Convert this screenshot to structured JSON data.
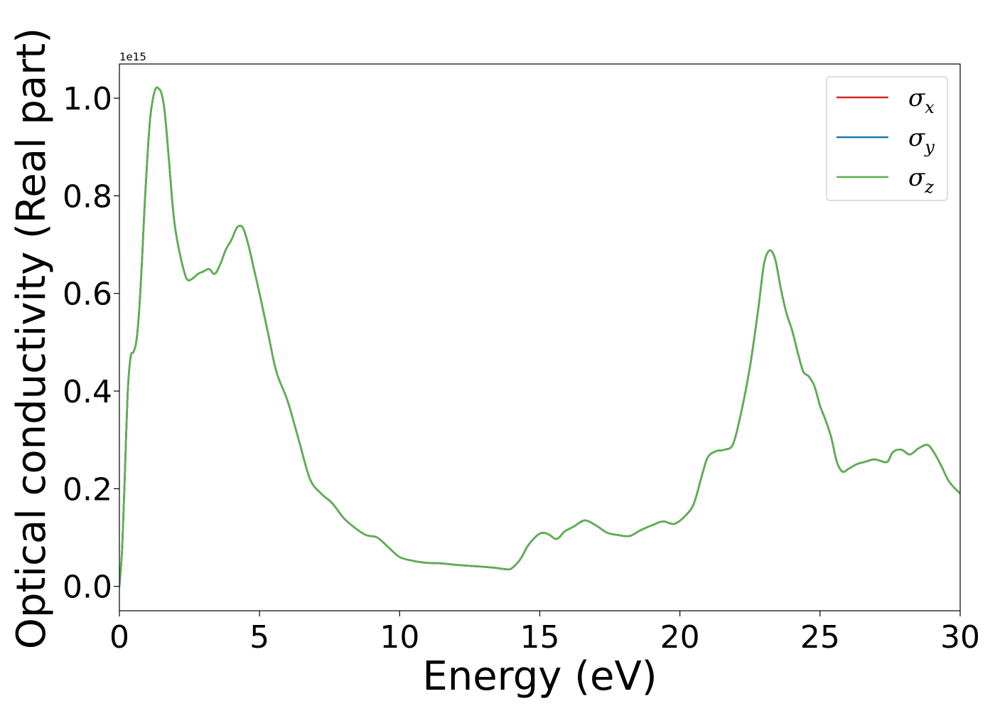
{
  "chart_data": {
    "type": "line",
    "xlabel": "Energy (eV)",
    "ylabel": "Optical conductivity (Real part)",
    "y_offset_text": "1e15",
    "xlim": [
      0,
      30
    ],
    "ylim": [
      -0.05,
      1.07
    ],
    "xticks": [
      0,
      5,
      10,
      15,
      20,
      25,
      30
    ],
    "xtick_labels": [
      "0",
      "5",
      "10",
      "15",
      "20",
      "25",
      "30"
    ],
    "yticks": [
      0.0,
      0.2,
      0.4,
      0.6,
      0.8,
      1.0
    ],
    "ytick_labels": [
      "0.0",
      "0.2",
      "0.4",
      "0.6",
      "0.8",
      "1.0"
    ],
    "grid": false,
    "legend_position": "top-right",
    "x": [
      0.0,
      0.1,
      0.2,
      0.3,
      0.4,
      0.5,
      0.6,
      0.7,
      0.8,
      0.9,
      1.0,
      1.1,
      1.2,
      1.3,
      1.4,
      1.5,
      1.6,
      1.7,
      1.8,
      1.9,
      2.0,
      2.2,
      2.4,
      2.6,
      2.8,
      3.0,
      3.2,
      3.4,
      3.6,
      3.8,
      4.0,
      4.2,
      4.4,
      4.6,
      4.8,
      5.0,
      5.3,
      5.6,
      6.0,
      6.4,
      6.8,
      7.2,
      7.6,
      8.0,
      8.4,
      8.8,
      9.2,
      9.6,
      10.0,
      10.5,
      11.0,
      11.5,
      12.0,
      12.5,
      13.0,
      13.4,
      13.8,
      14.0,
      14.3,
      14.6,
      15.0,
      15.3,
      15.6,
      15.9,
      16.2,
      16.6,
      17.0,
      17.4,
      17.8,
      18.2,
      18.6,
      19.0,
      19.4,
      19.8,
      20.2,
      20.5,
      20.8,
      21.0,
      21.3,
      21.6,
      21.9,
      22.2,
      22.5,
      22.8,
      23.0,
      23.2,
      23.4,
      23.6,
      23.8,
      24.0,
      24.2,
      24.4,
      24.6,
      24.8,
      25.0,
      25.2,
      25.4,
      25.6,
      25.8,
      26.0,
      26.3,
      26.6,
      26.9,
      27.1,
      27.4,
      27.6,
      27.9,
      28.2,
      28.5,
      28.8,
      29.0,
      29.3,
      29.6,
      30.0
    ],
    "series": [
      {
        "name": "σx",
        "color": "#d62728",
        "y": [
          0.0,
          0.08,
          0.24,
          0.4,
          0.47,
          0.48,
          0.5,
          0.56,
          0.66,
          0.78,
          0.88,
          0.96,
          1.0,
          1.02,
          1.02,
          1.01,
          0.98,
          0.92,
          0.85,
          0.78,
          0.73,
          0.67,
          0.63,
          0.63,
          0.64,
          0.645,
          0.65,
          0.64,
          0.66,
          0.69,
          0.71,
          0.735,
          0.735,
          0.7,
          0.65,
          0.6,
          0.52,
          0.44,
          0.38,
          0.3,
          0.22,
          0.19,
          0.17,
          0.14,
          0.12,
          0.105,
          0.1,
          0.08,
          0.06,
          0.052,
          0.048,
          0.047,
          0.044,
          0.042,
          0.04,
          0.038,
          0.035,
          0.037,
          0.055,
          0.085,
          0.108,
          0.107,
          0.097,
          0.113,
          0.122,
          0.135,
          0.125,
          0.11,
          0.105,
          0.103,
          0.115,
          0.125,
          0.133,
          0.128,
          0.145,
          0.17,
          0.23,
          0.265,
          0.277,
          0.28,
          0.292,
          0.36,
          0.45,
          0.57,
          0.66,
          0.688,
          0.67,
          0.61,
          0.56,
          0.525,
          0.48,
          0.44,
          0.43,
          0.41,
          0.37,
          0.34,
          0.305,
          0.255,
          0.235,
          0.24,
          0.25,
          0.255,
          0.26,
          0.258,
          0.255,
          0.275,
          0.28,
          0.27,
          0.282,
          0.29,
          0.28,
          0.25,
          0.215,
          0.19
        ]
      },
      {
        "name": "σy",
        "color": "#1f77b4",
        "y": [
          0.0,
          0.08,
          0.24,
          0.4,
          0.47,
          0.48,
          0.5,
          0.56,
          0.66,
          0.78,
          0.88,
          0.96,
          1.0,
          1.02,
          1.02,
          1.01,
          0.98,
          0.92,
          0.85,
          0.78,
          0.73,
          0.67,
          0.63,
          0.63,
          0.64,
          0.645,
          0.65,
          0.64,
          0.66,
          0.69,
          0.71,
          0.735,
          0.735,
          0.7,
          0.65,
          0.6,
          0.52,
          0.44,
          0.38,
          0.3,
          0.22,
          0.19,
          0.17,
          0.14,
          0.12,
          0.105,
          0.1,
          0.08,
          0.06,
          0.052,
          0.048,
          0.047,
          0.044,
          0.042,
          0.04,
          0.038,
          0.035,
          0.037,
          0.055,
          0.085,
          0.108,
          0.107,
          0.097,
          0.113,
          0.122,
          0.135,
          0.125,
          0.11,
          0.105,
          0.103,
          0.115,
          0.125,
          0.133,
          0.128,
          0.145,
          0.17,
          0.23,
          0.265,
          0.277,
          0.28,
          0.292,
          0.36,
          0.45,
          0.57,
          0.66,
          0.688,
          0.67,
          0.61,
          0.56,
          0.525,
          0.48,
          0.44,
          0.43,
          0.41,
          0.37,
          0.34,
          0.305,
          0.255,
          0.235,
          0.24,
          0.25,
          0.255,
          0.26,
          0.258,
          0.255,
          0.275,
          0.28,
          0.27,
          0.282,
          0.29,
          0.28,
          0.25,
          0.215,
          0.19
        ]
      },
      {
        "name": "σz",
        "color": "#5cb14c",
        "y": [
          0.0,
          0.08,
          0.24,
          0.4,
          0.47,
          0.48,
          0.5,
          0.56,
          0.66,
          0.78,
          0.88,
          0.96,
          1.0,
          1.02,
          1.02,
          1.01,
          0.98,
          0.92,
          0.85,
          0.78,
          0.73,
          0.67,
          0.63,
          0.63,
          0.64,
          0.645,
          0.65,
          0.64,
          0.66,
          0.69,
          0.71,
          0.735,
          0.735,
          0.7,
          0.65,
          0.6,
          0.52,
          0.44,
          0.38,
          0.3,
          0.22,
          0.19,
          0.17,
          0.14,
          0.12,
          0.105,
          0.1,
          0.08,
          0.06,
          0.052,
          0.048,
          0.047,
          0.044,
          0.042,
          0.04,
          0.038,
          0.035,
          0.037,
          0.055,
          0.085,
          0.108,
          0.107,
          0.097,
          0.113,
          0.122,
          0.135,
          0.125,
          0.11,
          0.105,
          0.103,
          0.115,
          0.125,
          0.133,
          0.128,
          0.145,
          0.17,
          0.23,
          0.265,
          0.277,
          0.28,
          0.292,
          0.36,
          0.45,
          0.57,
          0.66,
          0.688,
          0.67,
          0.61,
          0.56,
          0.525,
          0.48,
          0.44,
          0.43,
          0.41,
          0.37,
          0.34,
          0.305,
          0.255,
          0.235,
          0.24,
          0.25,
          0.255,
          0.26,
          0.258,
          0.255,
          0.275,
          0.28,
          0.27,
          0.282,
          0.29,
          0.28,
          0.25,
          0.215,
          0.19
        ]
      }
    ],
    "legend": [
      {
        "base": "σ",
        "sub": "x"
      },
      {
        "base": "σ",
        "sub": "y"
      },
      {
        "base": "σ",
        "sub": "z"
      }
    ]
  }
}
